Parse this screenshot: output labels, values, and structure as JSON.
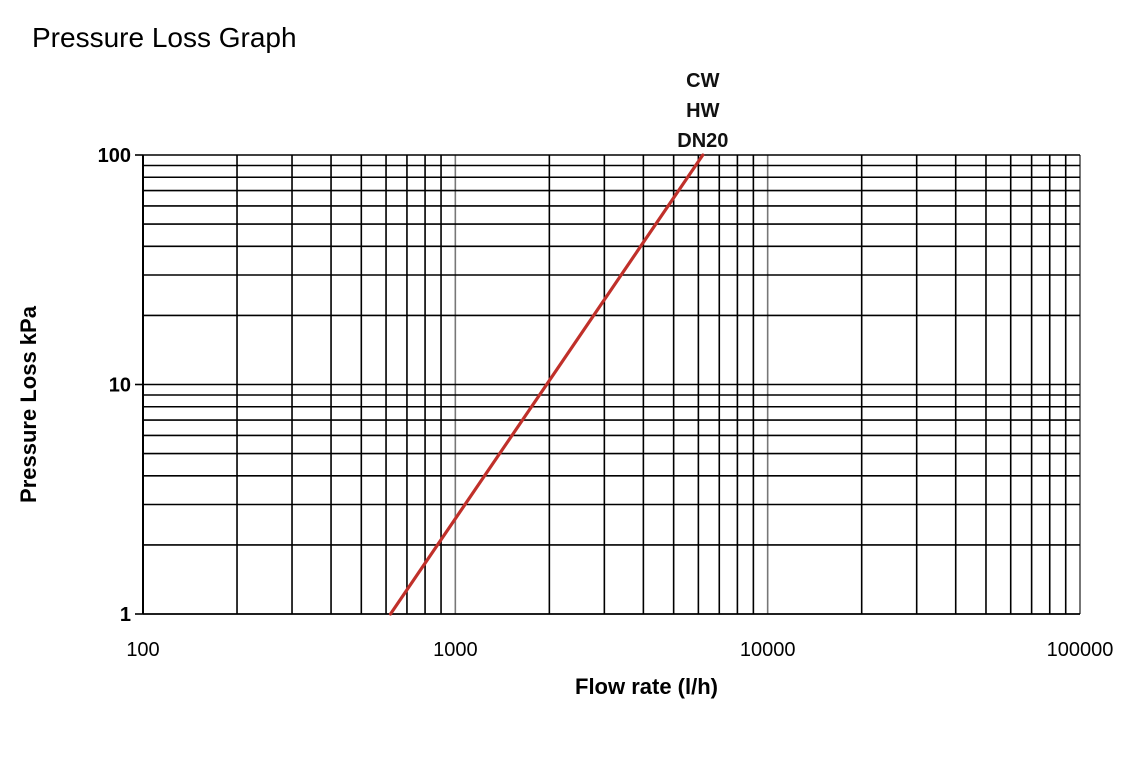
{
  "title": "Pressure Loss Graph",
  "chart_data": {
    "type": "line",
    "xscale": "log",
    "yscale": "log",
    "xlim": [
      100,
      100000
    ],
    "ylim": [
      1,
      100
    ],
    "xticks": [
      100,
      1000,
      10000,
      100000
    ],
    "xtick_labels": [
      "100",
      "1000",
      "10000",
      "100000"
    ],
    "yticks": [
      1,
      10,
      100
    ],
    "ytick_labels": [
      "1",
      "10",
      "100"
    ],
    "xlabel": "Flow rate (l/h)",
    "ylabel": "Pressure Loss kPa",
    "grid": true,
    "legend": "none",
    "series": [
      {
        "name": "",
        "labels": [
          "CW",
          "HW",
          "DN20"
        ],
        "color": "#c0302a",
        "x": [
          620,
          6200
        ],
        "y": [
          1,
          100
        ]
      }
    ]
  }
}
